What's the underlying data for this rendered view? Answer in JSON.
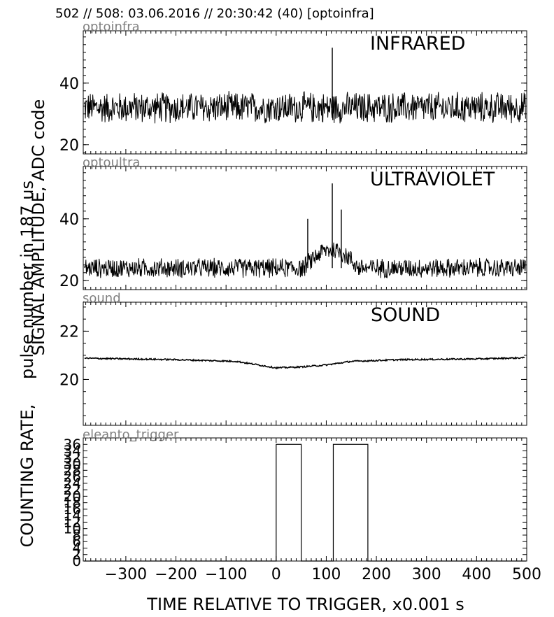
{
  "header": {
    "title": "502 // 508:   03.06.2016 // 20:30:42 (40)  [optoinfra]"
  },
  "chart_data": {
    "type": "line",
    "xlabel": "TIME RELATIVE TO TRIGGER,   x0.001 s",
    "ylabel_signal": "SIGNAL AMPLITUDE, ADC code",
    "ylabel_count": "pulse number in 187 us",
    "ylabel_rate": "COUNTING RATE,",
    "xlim": [
      -385,
      500
    ],
    "xticks": [
      -300,
      -200,
      -100,
      0,
      100,
      200,
      300,
      400,
      500
    ],
    "xtick_labels": [
      "−300",
      "−200",
      "−100",
      "0",
      "100",
      "200",
      "300",
      "400",
      "500"
    ],
    "panels": [
      {
        "name": "optoinfra",
        "label": "INFRARED",
        "ylim": [
          17,
          57
        ],
        "yticks": [
          20,
          40
        ],
        "ytick_labels": [
          "20",
          "40"
        ],
        "series": {
          "baseline": 32,
          "noise": 3.5,
          "spikes": [
            {
              "x": 112,
              "y": 51.5
            },
            {
              "x": 113,
              "y": 28
            }
          ]
        }
      },
      {
        "name": "optoultra",
        "label": "ULTRAVIOLET",
        "ylim": [
          17,
          57
        ],
        "yticks": [
          20,
          40
        ],
        "ytick_labels": [
          "20",
          "40"
        ],
        "series": {
          "baseline": 24,
          "noise": 2.2,
          "bump": {
            "start": 55,
            "end": 165,
            "level": 30
          },
          "spikes": [
            {
              "x": 112,
              "y": 51.5
            },
            {
              "x": 130,
              "y": 43
            },
            {
              "x": 63,
              "y": 40
            }
          ]
        }
      },
      {
        "name": "sound",
        "label": "SOUND",
        "ylim": [
          18.1,
          23.2
        ],
        "yticks": [
          20,
          22
        ],
        "ytick_labels": [
          "20",
          "22"
        ],
        "series": {
          "points": [
            [
              -385,
              20.88
            ],
            [
              -200,
              20.82
            ],
            [
              -80,
              20.75
            ],
            [
              -20,
              20.55
            ],
            [
              0,
              20.48
            ],
            [
              50,
              20.52
            ],
            [
              100,
              20.6
            ],
            [
              150,
              20.75
            ],
            [
              250,
              20.82
            ],
            [
              400,
              20.85
            ],
            [
              500,
              20.9
            ]
          ],
          "noise": 0.03
        }
      },
      {
        "name": "eleanto_trigger",
        "label": "",
        "ylim": [
          0,
          38
        ],
        "ytick_labels": [
          "0",
          "2",
          "4",
          "6",
          "8",
          "10",
          "12",
          "14",
          "16",
          "18",
          "20",
          "22",
          "24",
          "26",
          "28",
          "30",
          "32",
          "34",
          "36"
        ],
        "series": {
          "steps": [
            {
              "x0": 0,
              "x1": 50,
              "y": 36
            },
            {
              "x0": 114,
              "x1": 183,
              "y": 36
            }
          ]
        }
      }
    ]
  }
}
